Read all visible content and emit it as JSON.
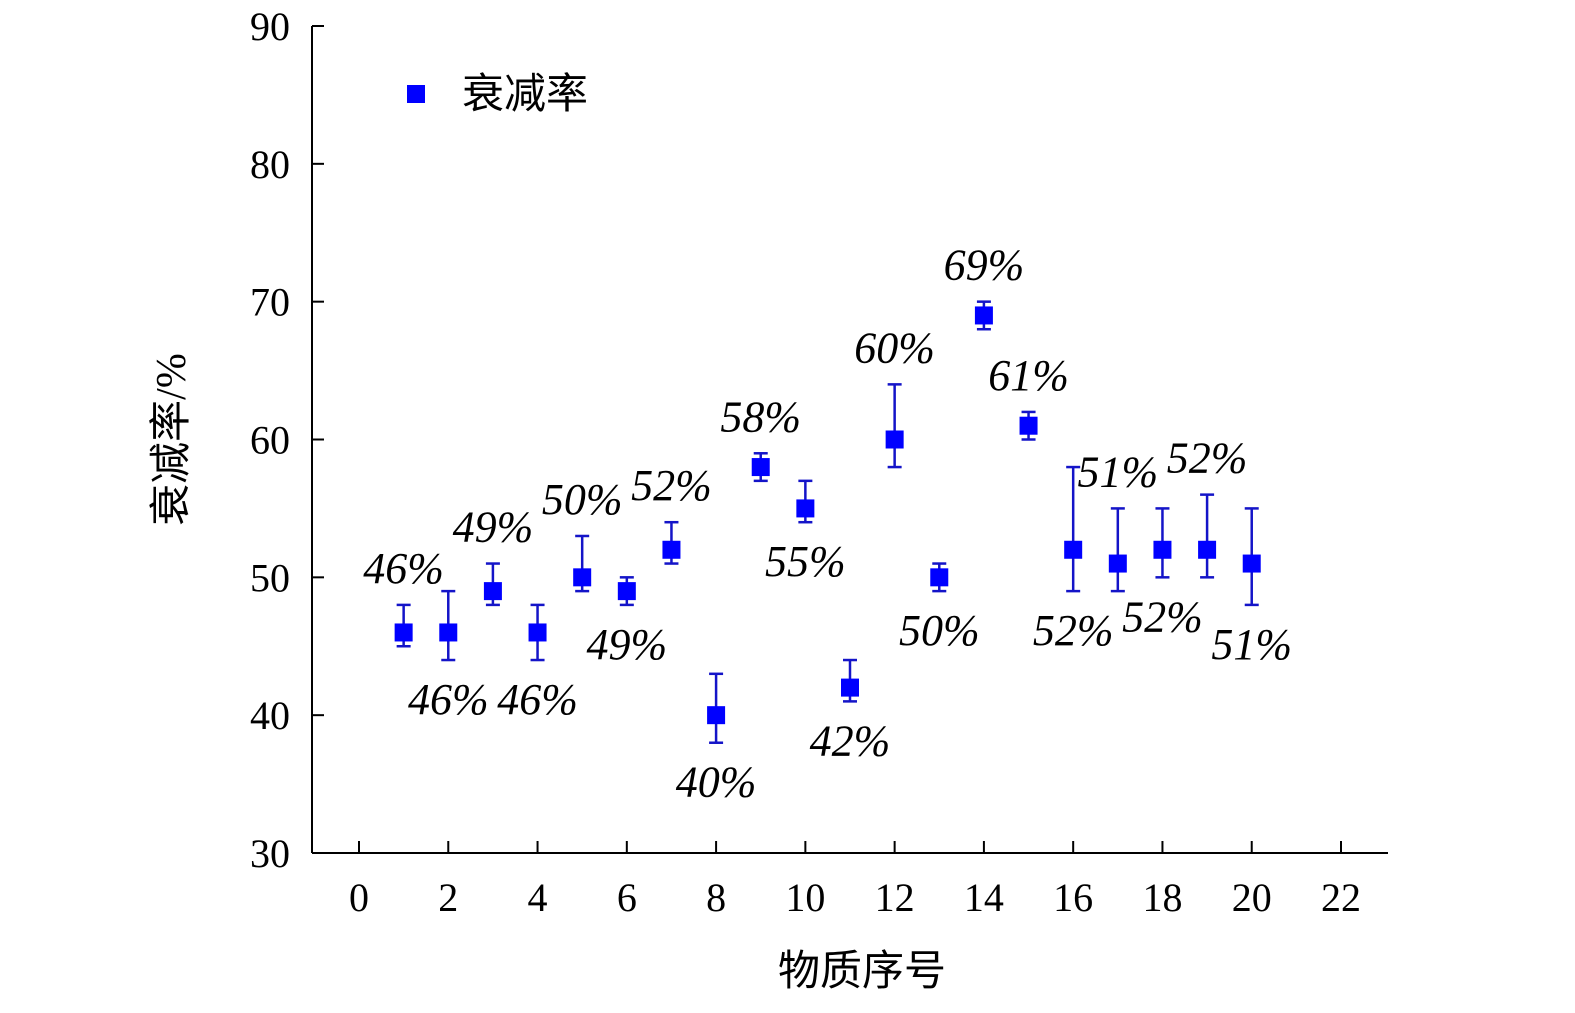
{
  "chart_data": {
    "type": "scatter",
    "xlabel": "物质序号",
    "ylabel": "衰减率/%",
    "xlim": [
      0,
      22
    ],
    "ylim": [
      30,
      90
    ],
    "x_ticks": [
      "0",
      "2",
      "4",
      "6",
      "8",
      "10",
      "12",
      "14",
      "16",
      "18",
      "20",
      "22"
    ],
    "y_ticks": [
      "30",
      "40",
      "50",
      "60",
      "70",
      "80",
      "90"
    ],
    "grid": false,
    "legend": {
      "position": "top-left",
      "label": "衰减率"
    },
    "marker_color": "#0000ff",
    "errorbar_color": "#1414c8",
    "series": [
      {
        "name": "衰减率",
        "points": [
          {
            "x": 1,
            "y": 46,
            "err_low": 45,
            "err_high": 48,
            "label": "46%",
            "label_pos": "above"
          },
          {
            "x": 2,
            "y": 46,
            "err_low": 44,
            "err_high": 49,
            "label": "46%",
            "label_pos": "below"
          },
          {
            "x": 3,
            "y": 49,
            "err_low": 48,
            "err_high": 51,
            "label": "49%",
            "label_pos": "above"
          },
          {
            "x": 4,
            "y": 46,
            "err_low": 44,
            "err_high": 48,
            "label": "46%",
            "label_pos": "below"
          },
          {
            "x": 5,
            "y": 50,
            "err_low": 49,
            "err_high": 53,
            "label": "50%",
            "label_pos": "above"
          },
          {
            "x": 6,
            "y": 49,
            "err_low": 48,
            "err_high": 50,
            "label": "49%",
            "label_pos": "below"
          },
          {
            "x": 7,
            "y": 52,
            "err_low": 51,
            "err_high": 54,
            "label": "52%",
            "label_pos": "above"
          },
          {
            "x": 8,
            "y": 40,
            "err_low": 38,
            "err_high": 43,
            "label": "40%",
            "label_pos": "below"
          },
          {
            "x": 9,
            "y": 58,
            "err_low": 57,
            "err_high": 59,
            "label": "58%",
            "label_pos": "above"
          },
          {
            "x": 10,
            "y": 55,
            "err_low": 54,
            "err_high": 57,
            "label": "55%",
            "label_pos": "below"
          },
          {
            "x": 11,
            "y": 42,
            "err_low": 41,
            "err_high": 44,
            "label": "42%",
            "label_pos": "below"
          },
          {
            "x": 12,
            "y": 60,
            "err_low": 58,
            "err_high": 64,
            "label": "60%",
            "label_pos": "above"
          },
          {
            "x": 13,
            "y": 50,
            "err_low": 49,
            "err_high": 51,
            "label": "50%",
            "label_pos": "below"
          },
          {
            "x": 14,
            "y": 69,
            "err_low": 68,
            "err_high": 70,
            "label": "69%",
            "label_pos": "above"
          },
          {
            "x": 15,
            "y": 61,
            "err_low": 60,
            "err_high": 62,
            "label": "61%",
            "label_pos": "above"
          },
          {
            "x": 16,
            "y": 52,
            "err_low": 49,
            "err_high": 58,
            "label": "52%",
            "label_pos": "below"
          },
          {
            "x": 17,
            "y": 51,
            "err_low": 49,
            "err_high": 55,
            "label": "51%",
            "label_pos": "above"
          },
          {
            "x": 18,
            "y": 52,
            "err_low": 50,
            "err_high": 55,
            "label": "52%",
            "label_pos": "below"
          },
          {
            "x": 19,
            "y": 52,
            "err_low": 50,
            "err_high": 56,
            "label": "52%",
            "label_pos": "above"
          },
          {
            "x": 20,
            "y": 51,
            "err_low": 48,
            "err_high": 55,
            "label": "51%",
            "label_pos": "below"
          }
        ]
      }
    ]
  }
}
